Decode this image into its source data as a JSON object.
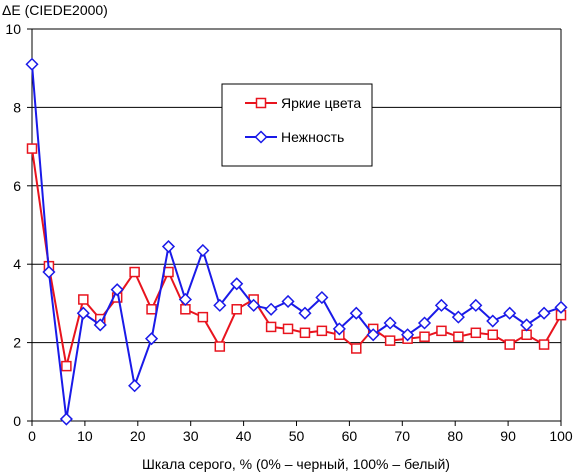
{
  "chart_data": {
    "type": "line",
    "title": "",
    "ylabel": "ΔE (CIEDE2000)",
    "xlabel": "Шкала серого, % (0% – черный, 100% – белый)",
    "xlim": [
      0,
      100
    ],
    "ylim": [
      0,
      10
    ],
    "xticks": [
      0,
      10,
      20,
      30,
      40,
      50,
      60,
      70,
      80,
      90,
      100
    ],
    "yticks": [
      0,
      2,
      4,
      6,
      8,
      10
    ],
    "grid": "horizontal",
    "legend_position": "upper-right",
    "x": [
      0,
      3.2,
      6.5,
      9.7,
      12.9,
      16.1,
      19.4,
      22.6,
      25.8,
      29.0,
      32.3,
      35.5,
      38.7,
      41.9,
      45.2,
      48.4,
      51.6,
      54.8,
      58.1,
      61.3,
      64.5,
      67.7,
      71.0,
      74.2,
      77.4,
      80.6,
      83.9,
      87.1,
      90.3,
      93.5,
      96.8,
      100
    ],
    "series": [
      {
        "name": "Яркие цвета",
        "color": "#e8141e",
        "marker": "square",
        "values": [
          6.95,
          3.95,
          1.4,
          3.1,
          2.6,
          3.15,
          3.8,
          2.85,
          3.8,
          2.85,
          2.65,
          1.9,
          2.85,
          3.1,
          2.4,
          2.35,
          2.25,
          2.3,
          2.2,
          1.85,
          2.35,
          2.05,
          2.1,
          2.15,
          2.3,
          2.15,
          2.25,
          2.2,
          1.95,
          2.2,
          1.95,
          2.7
        ]
      },
      {
        "name": "Нежность",
        "color": "#1a1ae8",
        "marker": "diamond",
        "values": [
          9.1,
          3.8,
          0.05,
          2.75,
          2.45,
          3.35,
          0.9,
          2.1,
          4.45,
          3.1,
          4.35,
          2.95,
          3.5,
          2.95,
          2.85,
          3.05,
          2.75,
          3.15,
          2.35,
          2.75,
          2.2,
          2.5,
          2.2,
          2.5,
          2.95,
          2.65,
          2.95,
          2.55,
          2.75,
          2.45,
          2.75,
          2.9
        ]
      }
    ]
  }
}
